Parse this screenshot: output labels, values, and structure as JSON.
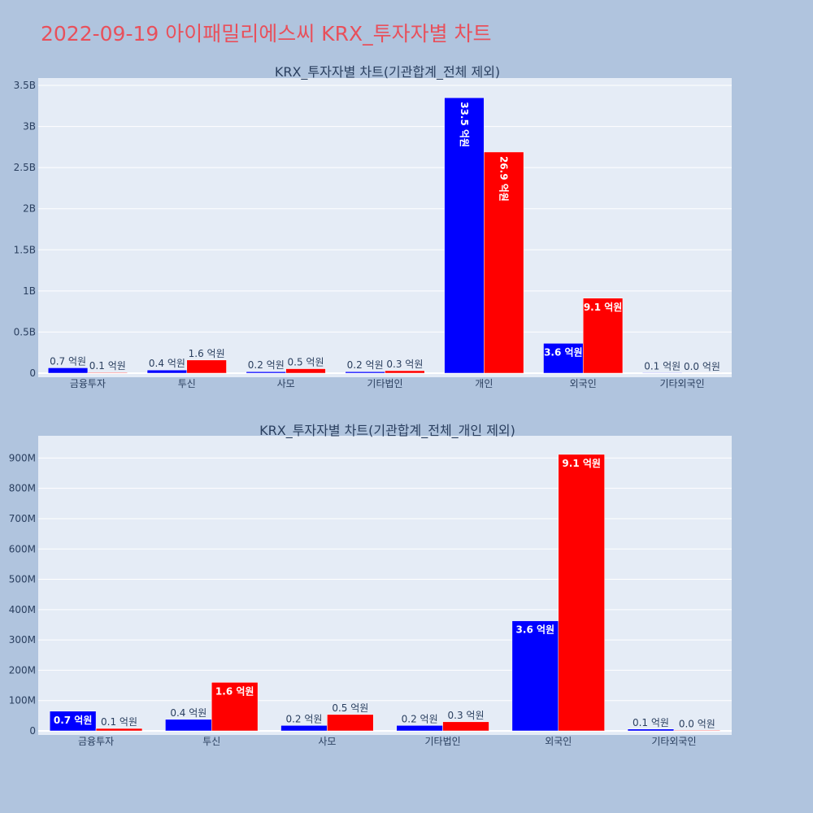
{
  "page_title": "2022-09-19 아이패밀리에스씨 KRX_투자자별 차트",
  "colors": {
    "series_a": "#0000ff",
    "series_b": "#ff0000",
    "plot_bg": "#e5ecf6",
    "page_bg": "#b0c4de",
    "title": "#e8505b"
  },
  "chart_data": [
    {
      "type": "bar",
      "title": "KRX_투자자별 차트(기관합계_전체 제외)",
      "categories": [
        "금융투자",
        "투신",
        "사모",
        "기타법인",
        "개인",
        "외국인",
        "기타외국인"
      ],
      "series": [
        {
          "values": [
            65000000,
            38000000,
            18000000,
            18000000,
            3350000000,
            363000000,
            6000000
          ],
          "labels": [
            "0.7 억원",
            "0.4 억원",
            "0.2 억원",
            "0.2 억원",
            "33.5 억원",
            "3.6 억원",
            "0.1 억원"
          ]
        },
        {
          "values": [
            8000000,
            160000000,
            54000000,
            30000000,
            2690000000,
            912000000,
            2000000
          ],
          "labels": [
            "0.1 억원",
            "1.6 억원",
            "0.5 억원",
            "0.3 억원",
            "26.9 억원",
            "9.1 억원",
            "0.0 억원"
          ]
        }
      ],
      "ylim": [
        0,
        3540000000
      ],
      "yticks": [
        0,
        500000000,
        1000000000,
        1500000000,
        2000000000,
        2500000000,
        3000000000,
        3500000000
      ],
      "ytick_labels": [
        "0",
        "0.5B",
        "1B",
        "1.5B",
        "2B",
        "2.5B",
        "3B",
        "3.5B"
      ],
      "grid": true
    },
    {
      "type": "bar",
      "title": "KRX_투자자별 차트(기관합계_전체_개인 제외)",
      "categories": [
        "금융투자",
        "투신",
        "사모",
        "기타법인",
        "외국인",
        "기타외국인"
      ],
      "series": [
        {
          "values": [
            65000000,
            38000000,
            18000000,
            18000000,
            363000000,
            6000000
          ],
          "labels": [
            "0.7 억원",
            "0.4 억원",
            "0.2 억원",
            "0.2 억원",
            "3.6 억원",
            "0.1 억원"
          ]
        },
        {
          "values": [
            8000000,
            160000000,
            54000000,
            30000000,
            912000000,
            2000000
          ],
          "labels": [
            "0.1 억원",
            "1.6 억원",
            "0.5 억원",
            "0.3 억원",
            "9.1 억원",
            "0.0 억원"
          ]
        }
      ],
      "ylim": [
        0,
        960000000
      ],
      "yticks": [
        0,
        100000000,
        200000000,
        300000000,
        400000000,
        500000000,
        600000000,
        700000000,
        800000000,
        900000000
      ],
      "ytick_labels": [
        "0",
        "100M",
        "200M",
        "300M",
        "400M",
        "500M",
        "600M",
        "700M",
        "800M",
        "900M"
      ],
      "grid": true
    }
  ]
}
